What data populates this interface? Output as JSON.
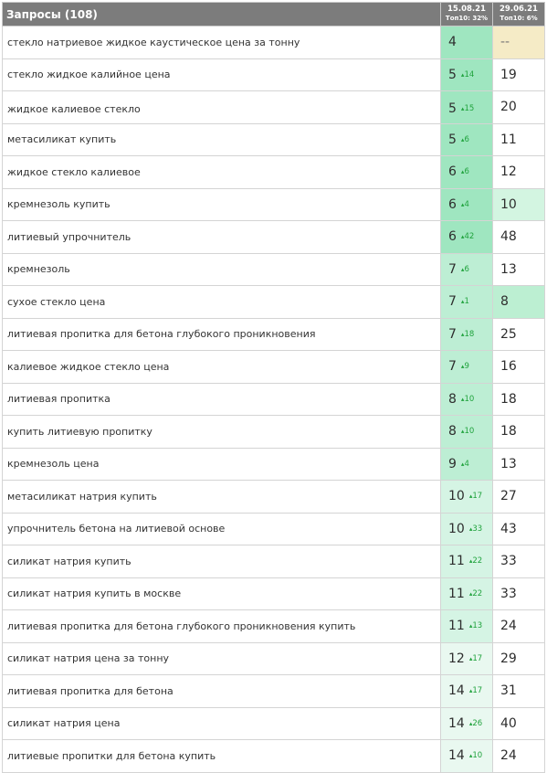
{
  "header": {
    "title": "Запросы (108)",
    "col1_date": "15.08.21",
    "col1_top": "Топ10: 32%",
    "col2_date": "29.06.21",
    "col2_top": "Топ10: 6%"
  },
  "colors": {
    "header_bg": "#7c7c7c",
    "pos_strong": "#9fe6c0",
    "pos_medium": "#bdeed4",
    "pos_light": "#d5f4e4",
    "pos_faint": "#e9f8f0",
    "old_green": "#bcefd2",
    "old_light": "#d3f5e1",
    "old_missing": "#f5ebc6",
    "delta_green": "#1fa23c"
  },
  "rows": [
    {
      "query": "стекло натриевое жидкое каустическое цена за тонну",
      "pos": "4",
      "delta": "",
      "old": "--"
    },
    {
      "query": "стекло жидкое калийное цена",
      "pos": "5",
      "delta": "14",
      "old": "19"
    },
    {
      "query": "жидкое калиевое стекло",
      "pos": "5",
      "delta": "15",
      "old": "20"
    },
    {
      "query": "метасиликат купить",
      "pos": "5",
      "delta": "6",
      "old": "11"
    },
    {
      "query": "жидкое стекло калиевое",
      "pos": "6",
      "delta": "6",
      "old": "12"
    },
    {
      "query": "кремнезоль купить",
      "pos": "6",
      "delta": "4",
      "old": "10"
    },
    {
      "query": "литиевый упрочнитель",
      "pos": "6",
      "delta": "42",
      "old": "48"
    },
    {
      "query": "кремнезоль",
      "pos": "7",
      "delta": "6",
      "old": "13"
    },
    {
      "query": "сухое стекло цена",
      "pos": "7",
      "delta": "1",
      "old": "8"
    },
    {
      "query": "литиевая пропитка для бетона глубокого проникновения",
      "pos": "7",
      "delta": "18",
      "old": "25"
    },
    {
      "query": "калиевое жидкое стекло цена",
      "pos": "7",
      "delta": "9",
      "old": "16"
    },
    {
      "query": "литиевая пропитка",
      "pos": "8",
      "delta": "10",
      "old": "18"
    },
    {
      "query": "купить литиевую пропитку",
      "pos": "8",
      "delta": "10",
      "old": "18"
    },
    {
      "query": "кремнезоль цена",
      "pos": "9",
      "delta": "4",
      "old": "13"
    },
    {
      "query": "метасиликат натрия купить",
      "pos": "10",
      "delta": "17",
      "old": "27"
    },
    {
      "query": "упрочнитель бетона на литиевой основе",
      "pos": "10",
      "delta": "33",
      "old": "43"
    },
    {
      "query": "силикат натрия купить",
      "pos": "11",
      "delta": "22",
      "old": "33"
    },
    {
      "query": "силикат натрия купить в москве",
      "pos": "11",
      "delta": "22",
      "old": "33"
    },
    {
      "query": "литиевая пропитка для бетона глубокого проникновения купить",
      "pos": "11",
      "delta": "13",
      "old": "24"
    },
    {
      "query": "силикат натрия цена за тонну",
      "pos": "12",
      "delta": "17",
      "old": "29"
    },
    {
      "query": "литиевая пропитка для бетона",
      "pos": "14",
      "delta": "17",
      "old": "31"
    },
    {
      "query": "силикат натрия цена",
      "pos": "14",
      "delta": "26",
      "old": "40"
    },
    {
      "query": "литиевые пропитки для бетона купить",
      "pos": "14",
      "delta": "10",
      "old": "24"
    }
  ]
}
